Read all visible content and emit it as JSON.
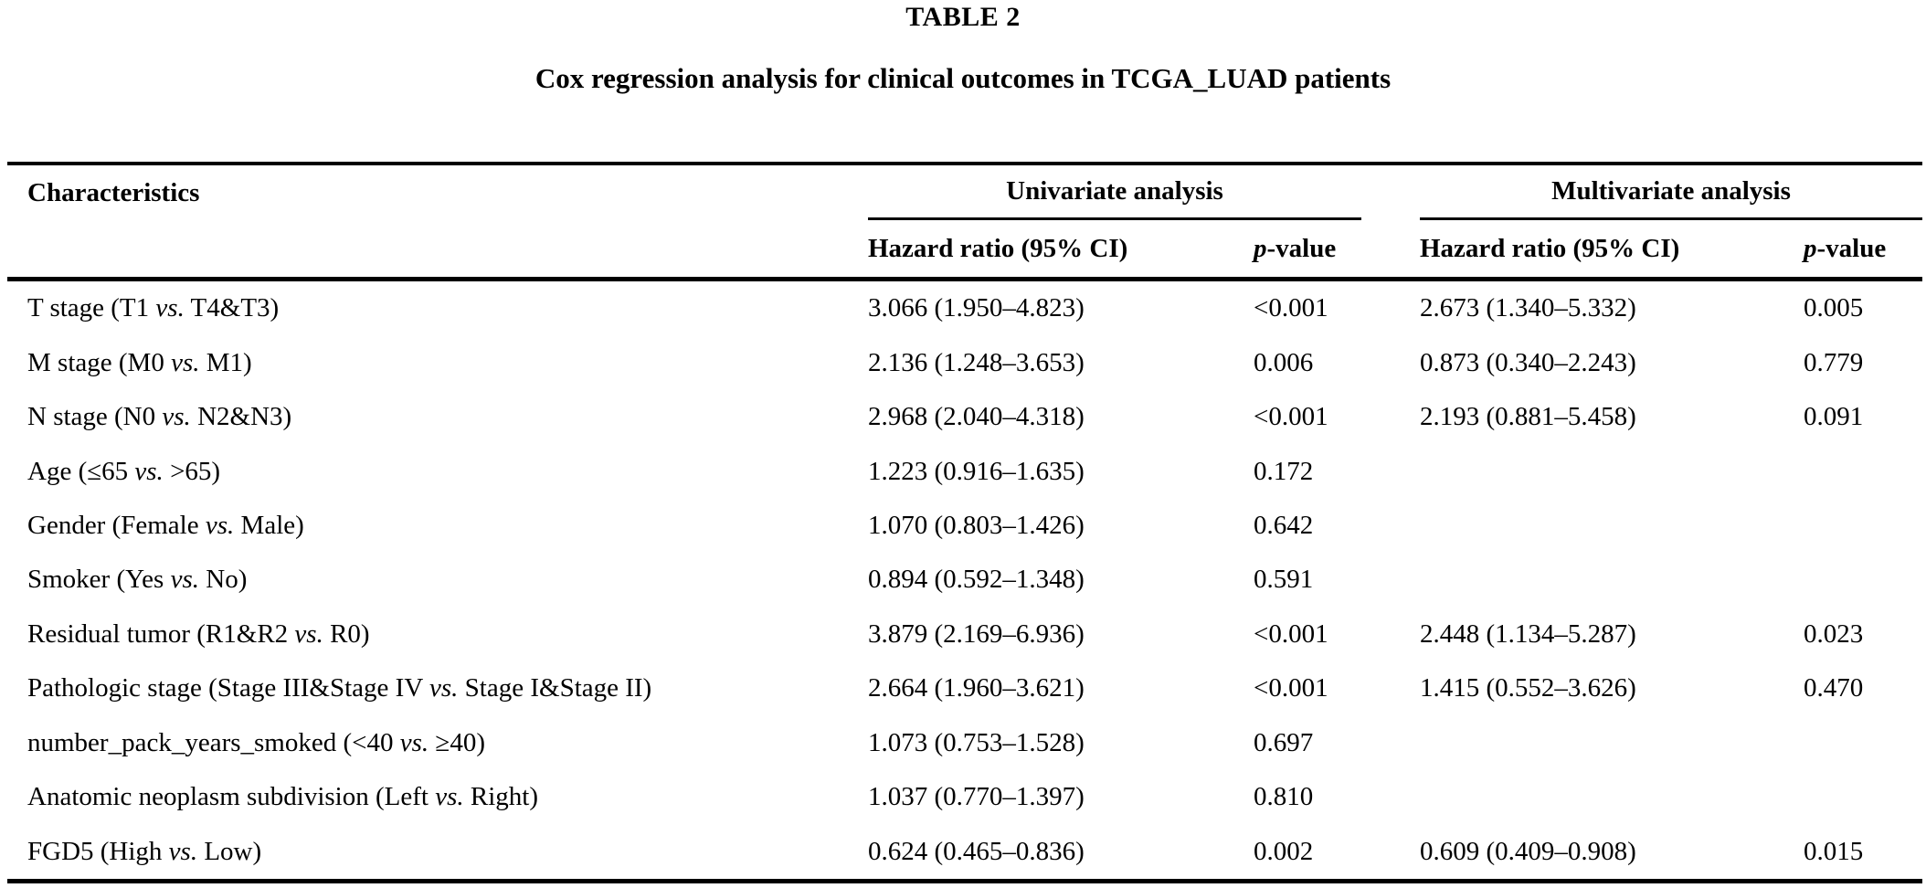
{
  "page": {
    "table_label": "TABLE 2",
    "title": "Cox regression analysis for clinical outcomes in TCGA_LUAD patients"
  },
  "table": {
    "characteristics_header": "Characteristics",
    "groups": {
      "univariate": "Univariate analysis",
      "multivariate": "Multivariate analysis"
    },
    "subheader": {
      "hazard_ratio": "Hazard ratio (95% CI)",
      "p": "p",
      "value_suffix": "-value"
    },
    "rows": [
      {
        "char_pre": "T stage (T1 ",
        "vs": "vs.",
        "char_post": " T4&T3)",
        "uni_hr": "3.066 (1.950–4.823)",
        "uni_p": "<0.001",
        "multi_hr": "2.673 (1.340–5.332)",
        "multi_p": "0.005"
      },
      {
        "char_pre": "M stage (M0 ",
        "vs": "vs.",
        "char_post": " M1)",
        "uni_hr": "2.136 (1.248–3.653)",
        "uni_p": "0.006",
        "multi_hr": "0.873 (0.340–2.243)",
        "multi_p": "0.779"
      },
      {
        "char_pre": "N stage (N0 ",
        "vs": "vs.",
        "char_post": " N2&N3)",
        "uni_hr": "2.968 (2.040–4.318)",
        "uni_p": "<0.001",
        "multi_hr": "2.193 (0.881–5.458)",
        "multi_p": "0.091"
      },
      {
        "char_pre": "Age (≤65 ",
        "vs": "vs.",
        "char_post": " >65)",
        "uni_hr": "1.223 (0.916–1.635)",
        "uni_p": "0.172",
        "multi_hr": "",
        "multi_p": ""
      },
      {
        "char_pre": "Gender (Female ",
        "vs": "vs.",
        "char_post": " Male)",
        "uni_hr": "1.070 (0.803–1.426)",
        "uni_p": "0.642",
        "multi_hr": "",
        "multi_p": ""
      },
      {
        "char_pre": "Smoker (Yes ",
        "vs": "vs.",
        "char_post": " No)",
        "uni_hr": "0.894 (0.592–1.348)",
        "uni_p": "0.591",
        "multi_hr": "",
        "multi_p": ""
      },
      {
        "char_pre": "Residual tumor (R1&R2 ",
        "vs": "vs.",
        "char_post": " R0)",
        "uni_hr": "3.879 (2.169–6.936)",
        "uni_p": "<0.001",
        "multi_hr": "2.448 (1.134–5.287)",
        "multi_p": "0.023"
      },
      {
        "char_pre": "Pathologic stage (Stage III&Stage IV ",
        "vs": "vs.",
        "char_post": " Stage I&Stage II)",
        "uni_hr": "2.664 (1.960–3.621)",
        "uni_p": "<0.001",
        "multi_hr": "1.415 (0.552–3.626)",
        "multi_p": "0.470"
      },
      {
        "char_pre": "number_pack_years_smoked (<40 ",
        "vs": "vs.",
        "char_post": " ≥40)",
        "uni_hr": "1.073 (0.753–1.528)",
        "uni_p": "0.697",
        "multi_hr": "",
        "multi_p": ""
      },
      {
        "char_pre": "Anatomic neoplasm subdivision (Left ",
        "vs": "vs.",
        "char_post": " Right)",
        "uni_hr": "1.037 (0.770–1.397)",
        "uni_p": "0.810",
        "multi_hr": "",
        "multi_p": ""
      },
      {
        "char_pre": "FGD5 (High ",
        "vs": "vs.",
        "char_post": " Low)",
        "uni_hr": "0.624 (0.465–0.836)",
        "uni_p": "0.002",
        "multi_hr": "0.609 (0.409–0.908)",
        "multi_p": "0.015"
      }
    ]
  }
}
